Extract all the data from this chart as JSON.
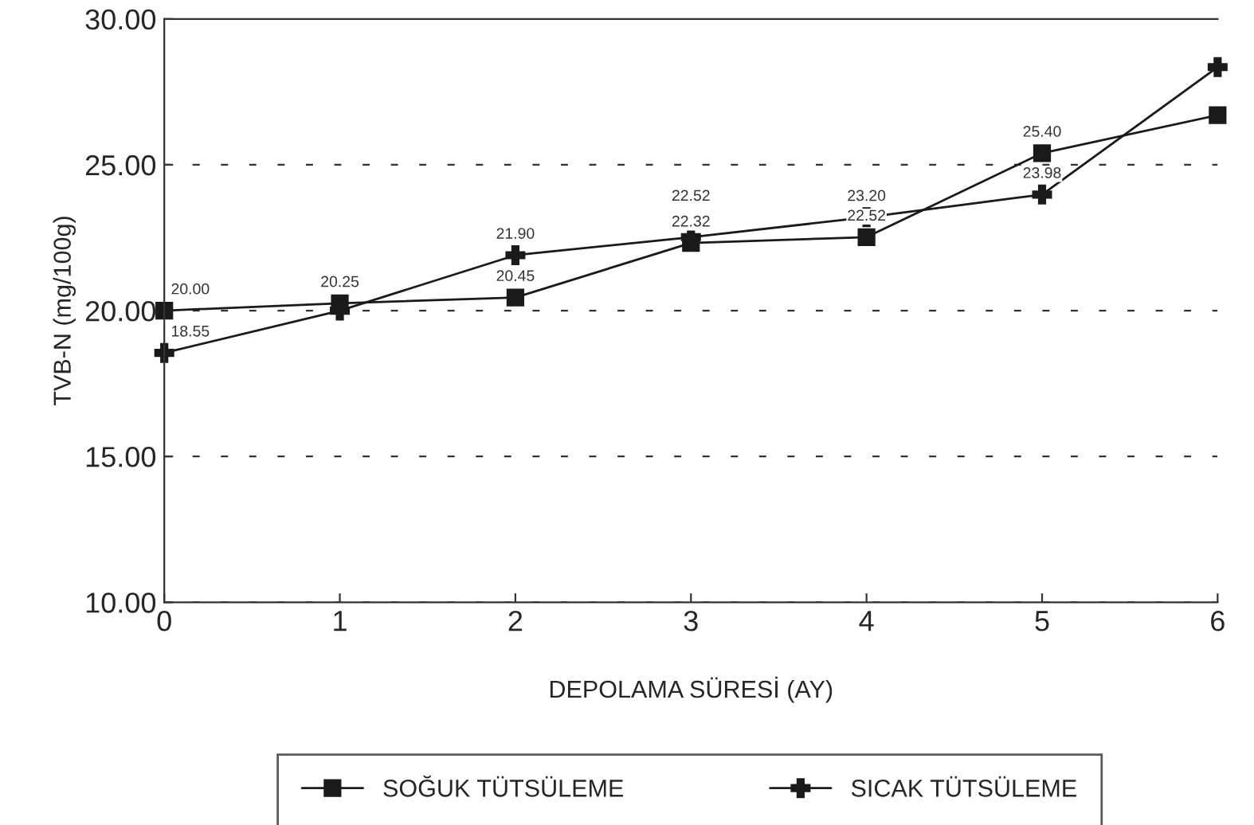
{
  "chart_data": {
    "type": "line",
    "xlabel": "DEPOLAMA SÜRESİ (AY)",
    "ylabel": "TVB-N (mg/100g)",
    "x": [
      0,
      1,
      2,
      3,
      4,
      5,
      6
    ],
    "series": [
      {
        "name": "SOĞUK TÜTSÜLEME",
        "color": "#1a1a1a",
        "marker": "square",
        "values": [
          20.0,
          20.25,
          20.45,
          22.32,
          22.52,
          25.4,
          26.7
        ],
        "value_labels": [
          "20.00",
          "20.25",
          "20.45",
          "22.32",
          "22.52",
          "25.40",
          null
        ]
      },
      {
        "name": "SICAK TÜTSÜLEME",
        "color": "#1a1a1a",
        "marker": "cross",
        "values": [
          18.55,
          20.0,
          21.9,
          22.52,
          23.2,
          23.98,
          28.35
        ],
        "value_labels": [
          "18.55",
          null,
          "21.90",
          "22.52",
          "23.20",
          "23.98",
          null
        ]
      }
    ],
    "xlim": [
      0,
      6
    ],
    "xticks": [
      0,
      1,
      2,
      3,
      4,
      5,
      6
    ],
    "ylim": [
      10,
      30
    ],
    "yticks": [
      {
        "value": 10,
        "label": "10.00"
      },
      {
        "value": 15,
        "label": "15.00"
      },
      {
        "value": 20,
        "label": "20.00"
      },
      {
        "value": 25,
        "label": "25.00"
      },
      {
        "value": 30,
        "label": "30.00"
      }
    ],
    "grid": "y",
    "legend": "bottom",
    "line_style": "solid"
  }
}
